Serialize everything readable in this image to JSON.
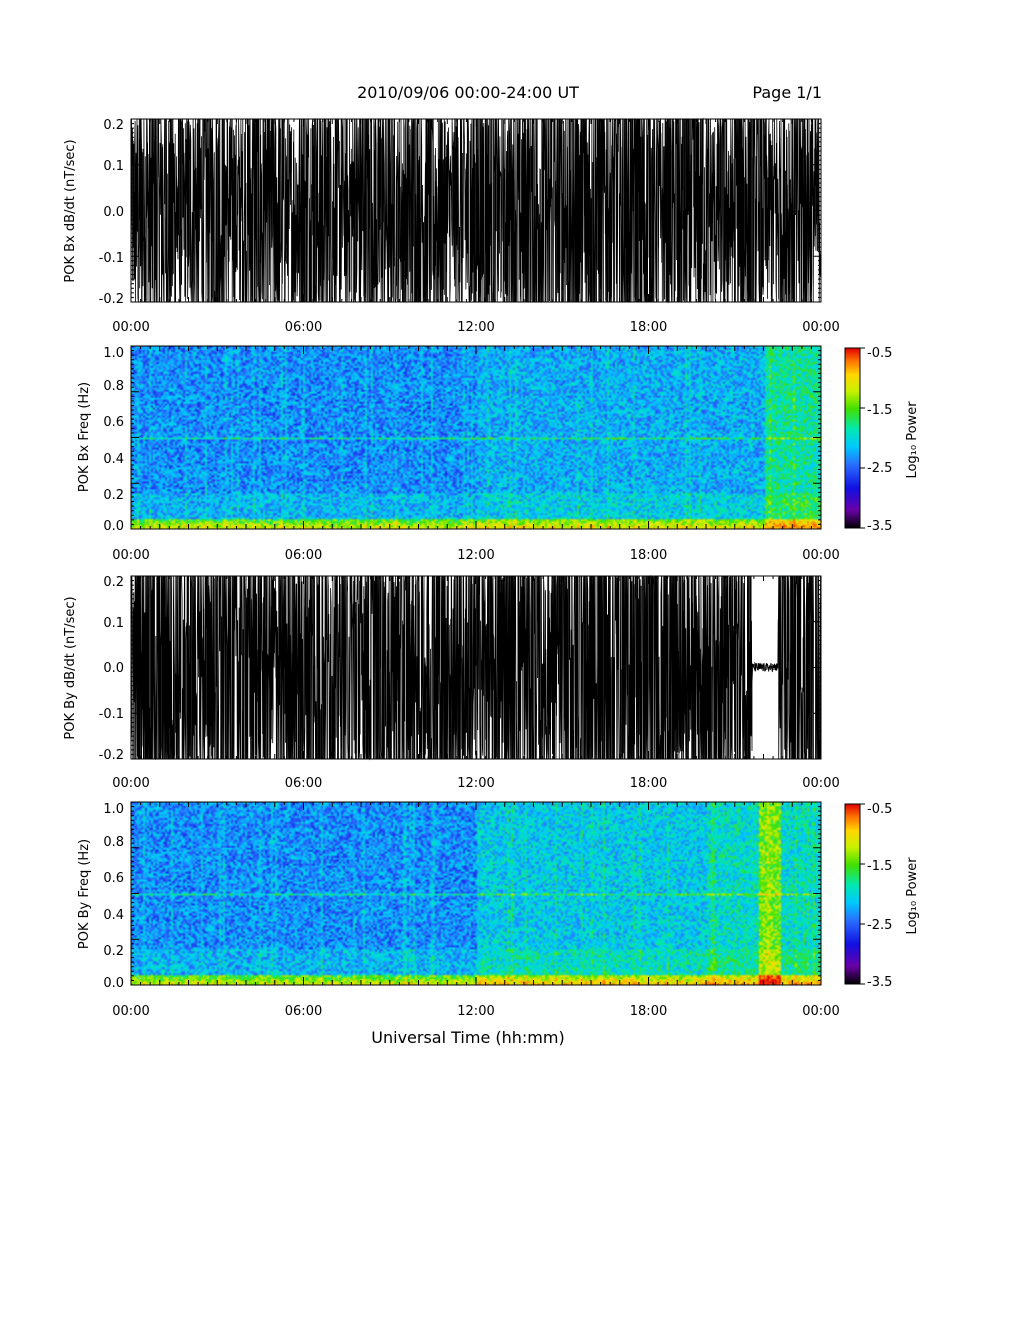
{
  "header": {
    "title": "2010/09/06  00:00-24:00 UT",
    "page": "Page 1/1"
  },
  "colors": {
    "trace": "#000000",
    "background": "#ffffff",
    "colormap": [
      "#000000",
      "#6a00a8",
      "#1010e0",
      "#2a6cff",
      "#00c8ff",
      "#00e8b0",
      "#40e000",
      "#c8f000",
      "#ffd800",
      "#ff7000",
      "#e00000"
    ]
  },
  "chart_data": [
    {
      "type": "line",
      "ylabel": "POK Bx dB/dt (nT/sec)",
      "ylim": [
        -0.2,
        0.2
      ],
      "ytick_labels": [
        "0.2",
        "0.1",
        "0.0",
        "-0.1",
        "-0.2"
      ],
      "ytick_values": [
        0.2,
        0.1,
        0.0,
        -0.1,
        -0.2
      ],
      "xlim_hours": [
        0,
        24
      ],
      "xtick_labels": [
        "00:00",
        "06:00",
        "12:00",
        "18:00",
        "00:00"
      ],
      "xtick_hours": [
        0,
        6,
        12,
        18,
        24
      ]
    },
    {
      "type": "heatmap",
      "ylabel": "POK Bx Freq (Hz)",
      "ylim": [
        0.0,
        1.0
      ],
      "ytick_labels": [
        "1.0",
        "0.8",
        "0.6",
        "0.4",
        "0.2",
        "0.0"
      ],
      "ytick_values": [
        1.0,
        0.8,
        0.6,
        0.4,
        0.2,
        0.0
      ],
      "xlim_hours": [
        0,
        24
      ],
      "xtick_labels": [
        "00:00",
        "06:00",
        "12:00",
        "18:00",
        "00:00"
      ],
      "xtick_hours": [
        0,
        6,
        12,
        18,
        24
      ],
      "colorbar": {
        "label": "Log₁₀ Power",
        "range": [
          -3.5,
          -0.5
        ],
        "tick_labels": [
          "-0.5",
          "-1.5",
          "-2.5",
          "-3.5"
        ],
        "tick_values": [
          -0.5,
          -1.5,
          -2.5,
          -3.5
        ]
      }
    },
    {
      "type": "line",
      "ylabel": "POK By dB/dt (nT/sec)",
      "ylim": [
        -0.2,
        0.2
      ],
      "ytick_labels": [
        "0.2",
        "0.1",
        "0.0",
        "-0.1",
        "-0.2"
      ],
      "ytick_values": [
        0.2,
        0.1,
        0.0,
        -0.1,
        -0.2
      ],
      "xlim_hours": [
        0,
        24
      ],
      "xtick_labels": [
        "00:00",
        "06:00",
        "12:00",
        "18:00",
        "00:00"
      ],
      "xtick_hours": [
        0,
        6,
        12,
        18,
        24
      ]
    },
    {
      "type": "heatmap",
      "ylabel": "POK By Freq (Hz)",
      "ylim": [
        0.0,
        1.0
      ],
      "ytick_labels": [
        "1.0",
        "0.8",
        "0.6",
        "0.4",
        "0.2",
        "0.0"
      ],
      "ytick_values": [
        1.0,
        0.8,
        0.6,
        0.4,
        0.2,
        0.0
      ],
      "xlim_hours": [
        0,
        24
      ],
      "xtick_labels": [
        "00:00",
        "06:00",
        "12:00",
        "18:00",
        "00:00"
      ],
      "xtick_hours": [
        0,
        6,
        12,
        18,
        24
      ],
      "xlabel": "Universal Time (hh:mm)",
      "colorbar": {
        "label": "Log₁₀ Power",
        "range": [
          -3.5,
          -0.5
        ],
        "tick_labels": [
          "-0.5",
          "-1.5",
          "-2.5",
          "-3.5"
        ],
        "tick_values": [
          -0.5,
          -1.5,
          -2.5,
          -3.5
        ]
      }
    }
  ]
}
